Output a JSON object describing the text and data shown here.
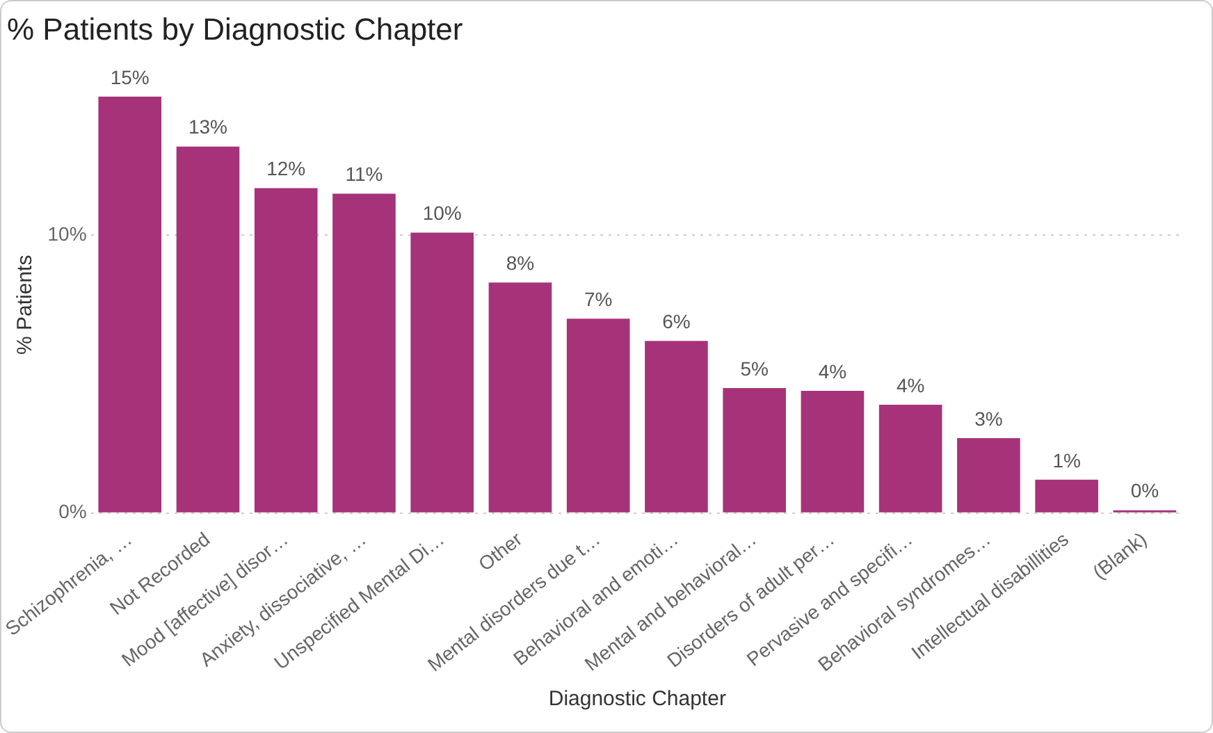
{
  "chart_data": {
    "type": "bar",
    "title": "% Patients by Diagnostic Chapter",
    "xlabel": "Diagnostic Chapter",
    "ylabel": "% Patients",
    "categories": [
      "Schizophrenia, …",
      "Not Recorded",
      "Mood [affective] disor…",
      "Anxiety, dissociative, …",
      "Unspecified Mental Di…",
      "Other",
      "Mental disorders due t…",
      "Behavioral and emoti…",
      "Mental and behavioral…",
      "Disorders of adult per…",
      "Pervasive and specifi…",
      "Behavioral syndromes…",
      "Intellectual disabillities",
      "(Blank)"
    ],
    "values": [
      15.0,
      13.2,
      11.7,
      11.5,
      10.1,
      8.3,
      7.0,
      6.2,
      4.5,
      4.4,
      3.9,
      2.7,
      1.2,
      0.1
    ],
    "value_labels": [
      "15%",
      "13%",
      "12%",
      "11%",
      "10%",
      "8%",
      "7%",
      "6%",
      "5%",
      "4%",
      "4%",
      "3%",
      "1%",
      "0%"
    ],
    "color": "#a63379",
    "ylim": [
      0,
      15
    ],
    "yticks": [
      {
        "value": 0,
        "label": "0%"
      },
      {
        "value": 10,
        "label": "10%"
      }
    ],
    "grid": "y",
    "legend": false
  }
}
